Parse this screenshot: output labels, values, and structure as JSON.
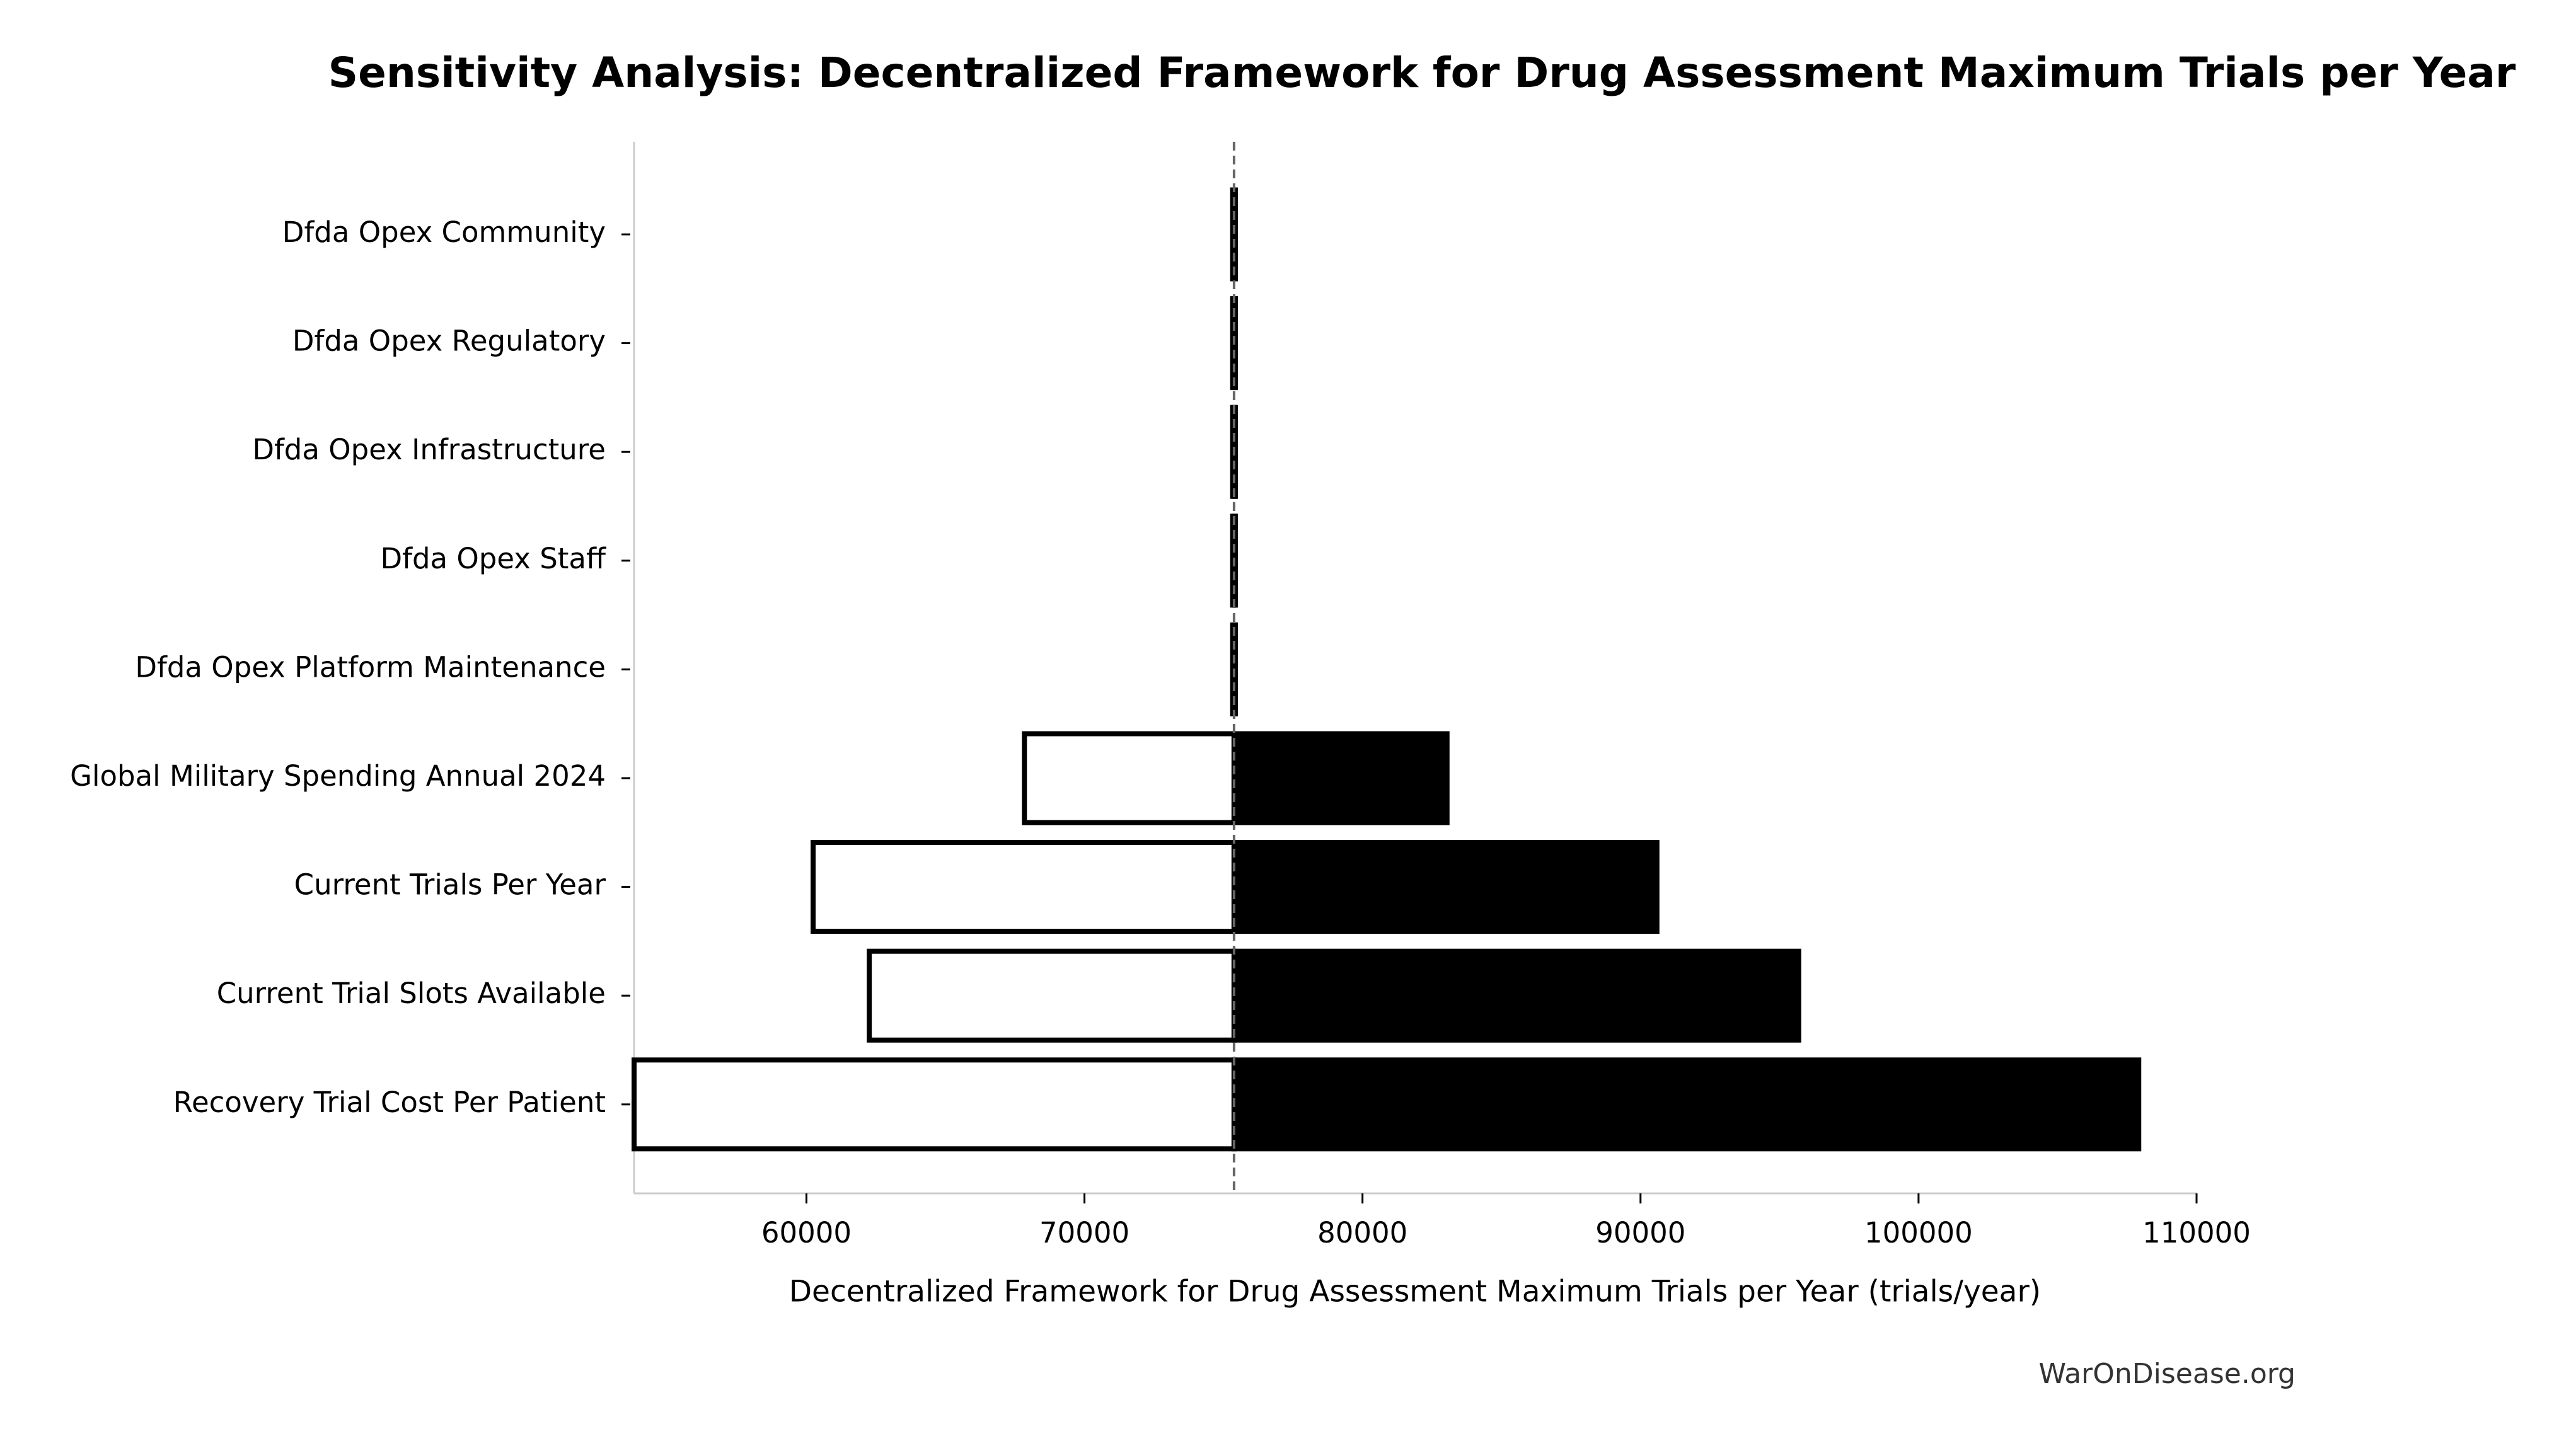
{
  "chart_data": {
    "type": "tornado",
    "title": "Sensitivity Analysis: Decentralized Framework for Drug Assessment Maximum Trials per Year",
    "x_label": "Decentralized Framework for Drug Assessment Maximum Trials per Year (trials/year)",
    "source": "WarOnDisease.org",
    "categories": [
      "Dfda Opex Community",
      "Dfda Opex Regulatory",
      "Dfda Opex Infrastructure",
      "Dfda Opex Staff",
      "Dfda Opex Platform Maintenance",
      "Global Military Spending Annual 2024",
      "Current Trials Per Year",
      "Current Trial Slots Available",
      "Recovery Trial Cost Per Patient"
    ],
    "baseline": 75380,
    "low_values": [
      75330,
      75330,
      75330,
      75330,
      75330,
      67840,
      60240,
      62260,
      53800
    ],
    "high_values": [
      75430,
      75430,
      75430,
      75430,
      75430,
      83040,
      90590,
      95690,
      107920
    ],
    "low_color": "#ffffff",
    "high_color": "#000000",
    "xlim": [
      53800,
      110000
    ],
    "xticks": [
      60000,
      70000,
      80000,
      90000,
      100000,
      110000
    ]
  }
}
